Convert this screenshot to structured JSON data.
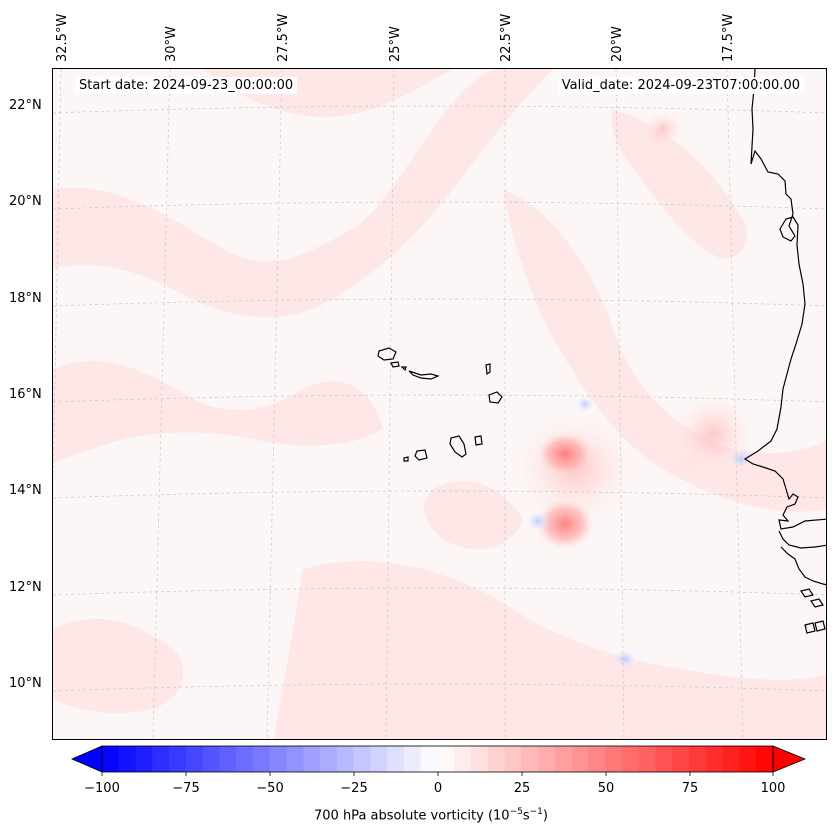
{
  "map": {
    "start_date": "Start date: 2024-09-23_00:00:00",
    "valid_date": "Valid_date: 2024-09-23T07:00:00.00",
    "lon_labels": [
      "32.5°W",
      "30°W",
      "27.5°W",
      "25°W",
      "22.5°W",
      "20°W",
      "17.5°W"
    ],
    "lat_labels": [
      "22°N",
      "20°N",
      "18°N",
      "16°N",
      "14°N",
      "12°N",
      "10°N"
    ],
    "field": "700 hPa absolute vorticity",
    "features": [
      "Cape Verde Islands",
      "West African coast (Senegal, Gambia, Guinea-Bissau)"
    ]
  },
  "colorbar": {
    "label": "700 hPa absolute vorticity (10",
    "label_exp": "−5",
    "label_unit": "s",
    "label_exp2": "−1",
    "label_close": ")",
    "ticks": [
      "−100",
      "−75",
      "−50",
      "−25",
      "0",
      "25",
      "50",
      "75",
      "100"
    ],
    "min": -100,
    "max": 100,
    "low_color": "#0000ff",
    "high_color": "#ff0000"
  },
  "colors": {
    "coast": "#000000",
    "grid": "#c8c8c8",
    "background_field": "#fdf6f6"
  }
}
